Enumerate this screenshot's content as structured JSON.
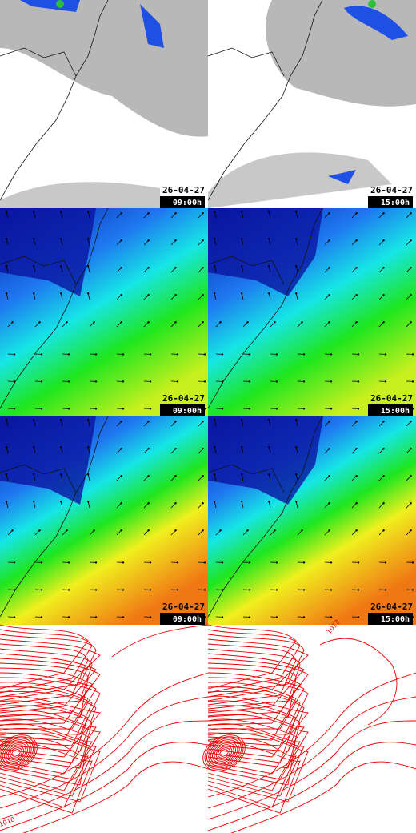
{
  "panels": [
    {
      "date": "26-04-27",
      "time": "09:00h"
    },
    {
      "date": "26-04-27",
      "time": "15:00h"
    },
    {
      "date": "26-04-27",
      "time": "09:00h"
    },
    {
      "date": "26-04-27",
      "time": "15:00h"
    },
    {
      "date": "26-04-27",
      "time": "09:00h"
    },
    {
      "date": "26-04-27",
      "time": "15:00h"
    }
  ],
  "contours": [
    {
      "labels": [
        "1010"
      ]
    },
    {
      "labels": [
        "1012"
      ]
    }
  ]
}
